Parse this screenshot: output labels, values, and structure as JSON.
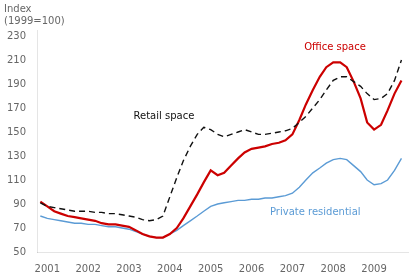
{
  "chart_data": {
    "type": "line",
    "ylabel": [
      "Index",
      "(1999=100)"
    ],
    "x": [
      2000.83,
      2001.0,
      2001.17,
      2001.33,
      2001.5,
      2001.67,
      2001.83,
      2002.0,
      2002.17,
      2002.33,
      2002.5,
      2002.67,
      2002.83,
      2003.0,
      2003.17,
      2003.33,
      2003.5,
      2003.67,
      2003.83,
      2004.0,
      2004.17,
      2004.33,
      2004.5,
      2004.67,
      2004.83,
      2005.0,
      2005.17,
      2005.33,
      2005.5,
      2005.67,
      2005.83,
      2006.0,
      2006.17,
      2006.33,
      2006.5,
      2006.67,
      2006.83,
      2007.0,
      2007.17,
      2007.33,
      2007.5,
      2007.67,
      2007.83,
      2008.0,
      2008.17,
      2008.33,
      2008.5,
      2008.67,
      2008.83,
      2009.0,
      2009.17,
      2009.33,
      2009.5,
      2009.67
    ],
    "series": [
      {
        "name": "Retail space",
        "color": "#111111",
        "line_style": "dashed",
        "values": [
          91,
          88,
          87,
          86,
          85,
          84,
          84,
          84,
          83,
          83,
          82,
          82,
          81,
          80,
          79,
          77,
          76,
          77,
          80,
          96,
          112,
          126,
          138,
          148,
          154,
          152,
          148,
          146,
          148,
          150,
          152,
          150,
          148,
          148,
          149,
          150,
          151,
          153,
          158,
          163,
          170,
          177,
          185,
          193,
          196,
          196,
          192,
          188,
          182,
          177,
          178,
          182,
          193,
          210
        ]
      },
      {
        "name": "Office space",
        "color": "#cc0000",
        "line_style": "solid",
        "values": [
          92,
          88,
          84,
          82,
          80,
          79,
          78,
          77,
          76,
          74,
          73,
          73,
          72,
          71,
          68,
          65,
          63,
          62,
          62,
          65,
          70,
          78,
          88,
          98,
          108,
          118,
          114,
          116,
          122,
          128,
          133,
          136,
          137,
          138,
          140,
          141,
          143,
          148,
          160,
          173,
          185,
          196,
          204,
          208,
          208,
          204,
          192,
          178,
          158,
          152,
          156,
          168,
          182,
          193
        ]
      },
      {
        "name": "Private residential",
        "color": "#5b9bd5",
        "line_style": "solid",
        "values": [
          80,
          78,
          77,
          76,
          75,
          74,
          74,
          73,
          73,
          72,
          71,
          71,
          70,
          69,
          67,
          65,
          63,
          62,
          62,
          65,
          68,
          72,
          76,
          80,
          84,
          88,
          90,
          91,
          92,
          93,
          93,
          94,
          94,
          95,
          95,
          96,
          97,
          99,
          104,
          110,
          116,
          120,
          124,
          127,
          128,
          127,
          122,
          117,
          110,
          106,
          107,
          110,
          118,
          128
        ]
      }
    ],
    "xlim": [
      2000.75,
      2009.83
    ],
    "xticks": [
      2001,
      2002,
      2003,
      2004,
      2005,
      2006,
      2007,
      2008,
      2009
    ],
    "ylim": [
      50,
      235
    ],
    "yticks": [
      50,
      70,
      90,
      110,
      130,
      150,
      170,
      190,
      210,
      230
    ],
    "grid": false
  }
}
